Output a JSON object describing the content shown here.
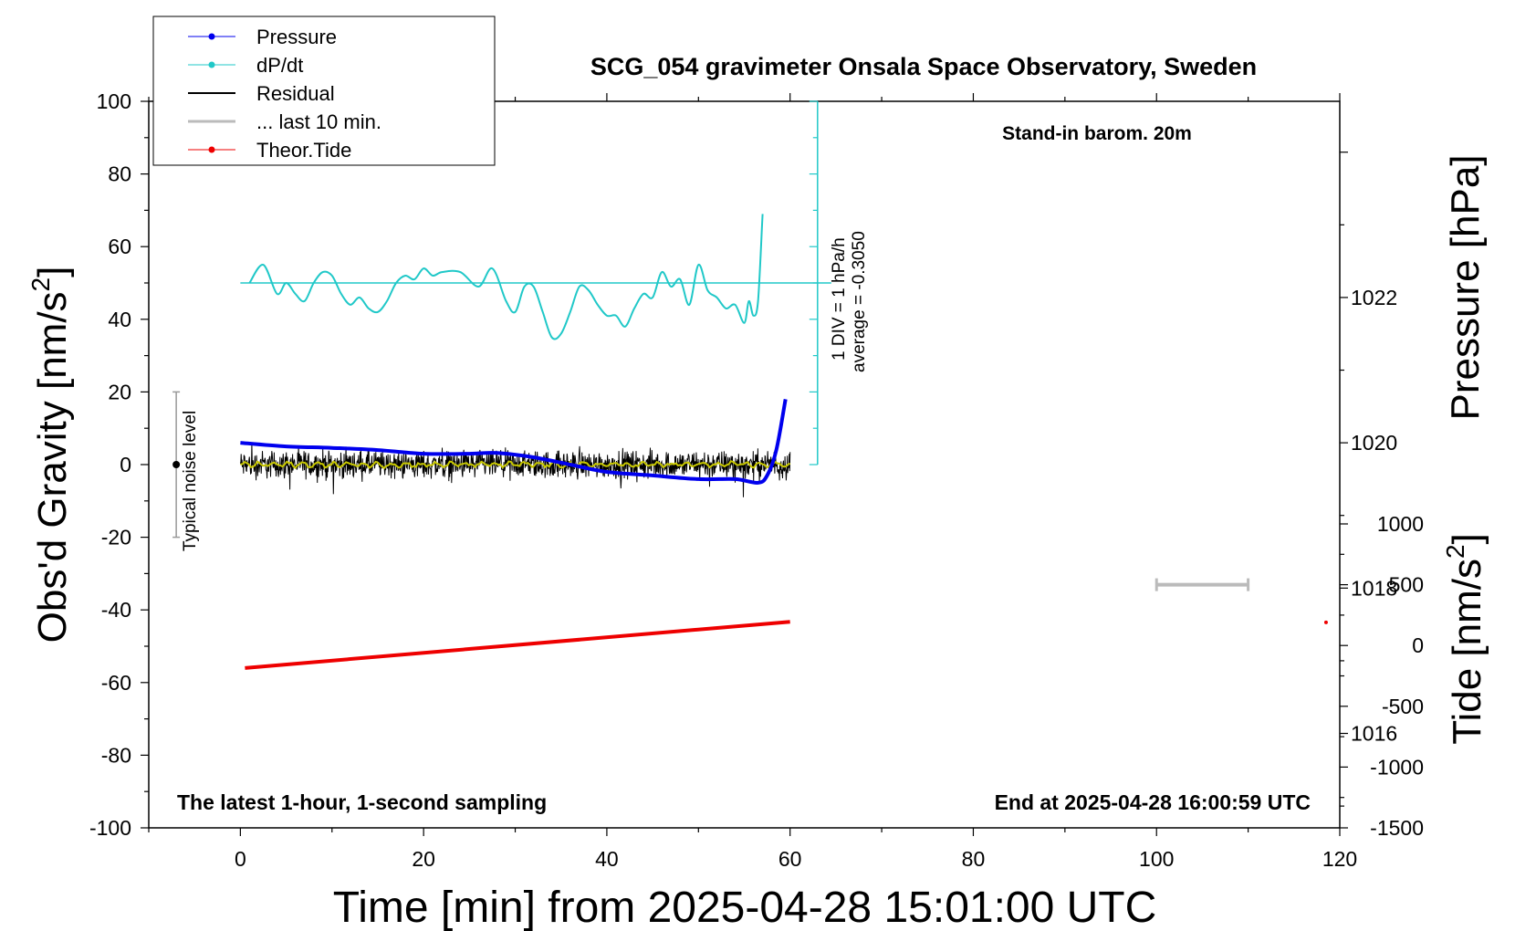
{
  "chart_data": {
    "type": "line",
    "title": "SCG_054 gravimeter Onsala Space Observatory, Sweden",
    "xlabel": "Time [min] from 2025-04-28 15:01:00 UTC",
    "ylabel_left_main": "Obs'd Gravity [nm/s",
    "ylabel_left_sup": "2",
    "ylabel_left_end": "]",
    "ylabel_right_top": "Pressure [hPa]",
    "ylabel_right_bottom_main": "Tide [nm/s",
    "ylabel_right_bottom_sup": "2",
    "ylabel_right_bottom_end": "]",
    "xlim": [
      -10,
      120
    ],
    "ylim": [
      -100,
      100
    ],
    "pressure_ylim": [
      1014.7,
      1024.7
    ],
    "tide_ylim": [
      -1500,
      1000
    ],
    "x_ticks": [
      "0",
      "20",
      "40",
      "60",
      "80",
      "100",
      "120"
    ],
    "y_ticks": [
      "100",
      "80",
      "60",
      "40",
      "20",
      "0",
      "-20",
      "-40",
      "-60",
      "-80",
      "-100"
    ],
    "pressure_ticks": [
      "1022",
      "1020",
      "1018",
      "1016"
    ],
    "tide_ticks": [
      "1000",
      "500",
      "0",
      "-500",
      "-1000",
      "-1500"
    ],
    "annotations": {
      "barometer": "Stand-in barom. 20m",
      "sampling": "The latest 1-hour, 1-second sampling",
      "end_time": "End at 2025-04-28 16:00:59 UTC",
      "noise": "Typical noise level",
      "div": "1 DIV = 1 hPa/h",
      "average": "average = -0.3050"
    },
    "legend": {
      "placement": "top-left",
      "entries": [
        "Pressure",
        "dP/dt",
        "Residual",
        "... last 10 min.",
        "Theor.Tide"
      ]
    },
    "colors": {
      "pressure": "#0000ee",
      "dpdt": "#20c8c8",
      "residual": "#000000",
      "residual_smooth": "#c8c800",
      "last10": "#bbbbbb",
      "tide": "#ee0000"
    },
    "series": [
      {
        "name": "Pressure",
        "axis": "pressure_hPa",
        "x": [
          0,
          5,
          10,
          15,
          20,
          25,
          28,
          32,
          36,
          40,
          45,
          50,
          54,
          56.5,
          57.5,
          58.5,
          59.5
        ],
        "values": [
          1020.0,
          1019.95,
          1019.93,
          1019.9,
          1019.85,
          1019.85,
          1019.86,
          1019.8,
          1019.7,
          1019.6,
          1019.55,
          1019.5,
          1019.5,
          1019.45,
          1019.55,
          1019.9,
          1020.6
        ]
      },
      {
        "name": "dP/dt",
        "axis": "gravity_units_offset",
        "x": [
          1,
          2.5,
          4,
          5,
          6,
          7,
          8,
          9,
          10,
          11,
          12,
          13,
          14,
          15,
          16,
          17,
          18,
          19,
          20,
          21,
          22,
          24,
          26,
          27.5,
          29,
          30,
          31,
          32,
          33,
          34,
          35,
          36,
          37,
          38,
          39,
          40,
          41,
          42,
          43,
          44,
          45,
          46,
          47,
          48,
          49,
          50,
          51,
          52,
          53,
          54,
          55,
          55.5,
          56,
          56.5,
          57
        ],
        "values": [
          50,
          55,
          47,
          50,
          47,
          45,
          50,
          53,
          52,
          47,
          44,
          46,
          43,
          42,
          45,
          50,
          52,
          51,
          54,
          52,
          53,
          53,
          49,
          54,
          45,
          42,
          49,
          49,
          42,
          35,
          36,
          42,
          49,
          48,
          44,
          41,
          41,
          38,
          43,
          47,
          46,
          53,
          49,
          51,
          44,
          55,
          48,
          46,
          43,
          44,
          39,
          45,
          41,
          45,
          69
        ]
      },
      {
        "name": "Theor.Tide",
        "axis": "tide_nm_s2",
        "x": [
          0.5,
          60
        ],
        "values": [
          -185,
          195
        ]
      }
    ],
    "residual": {
      "x_range": [
        0,
        60
      ],
      "mean": 0,
      "amplitude": 3
    },
    "last10_bar": {
      "x": [
        100,
        110
      ],
      "tide_value": 500
    },
    "tide_point": {
      "x": 118.5,
      "tide_value": 190
    },
    "noise_bar": {
      "x": -7,
      "y_range": [
        -20,
        20
      ],
      "center": 0
    },
    "dpdt_reference": {
      "baseline": 50,
      "x": [
        0,
        64.5
      ],
      "scale_axis_x": 63,
      "scale_range": [
        0,
        100
      ]
    }
  }
}
